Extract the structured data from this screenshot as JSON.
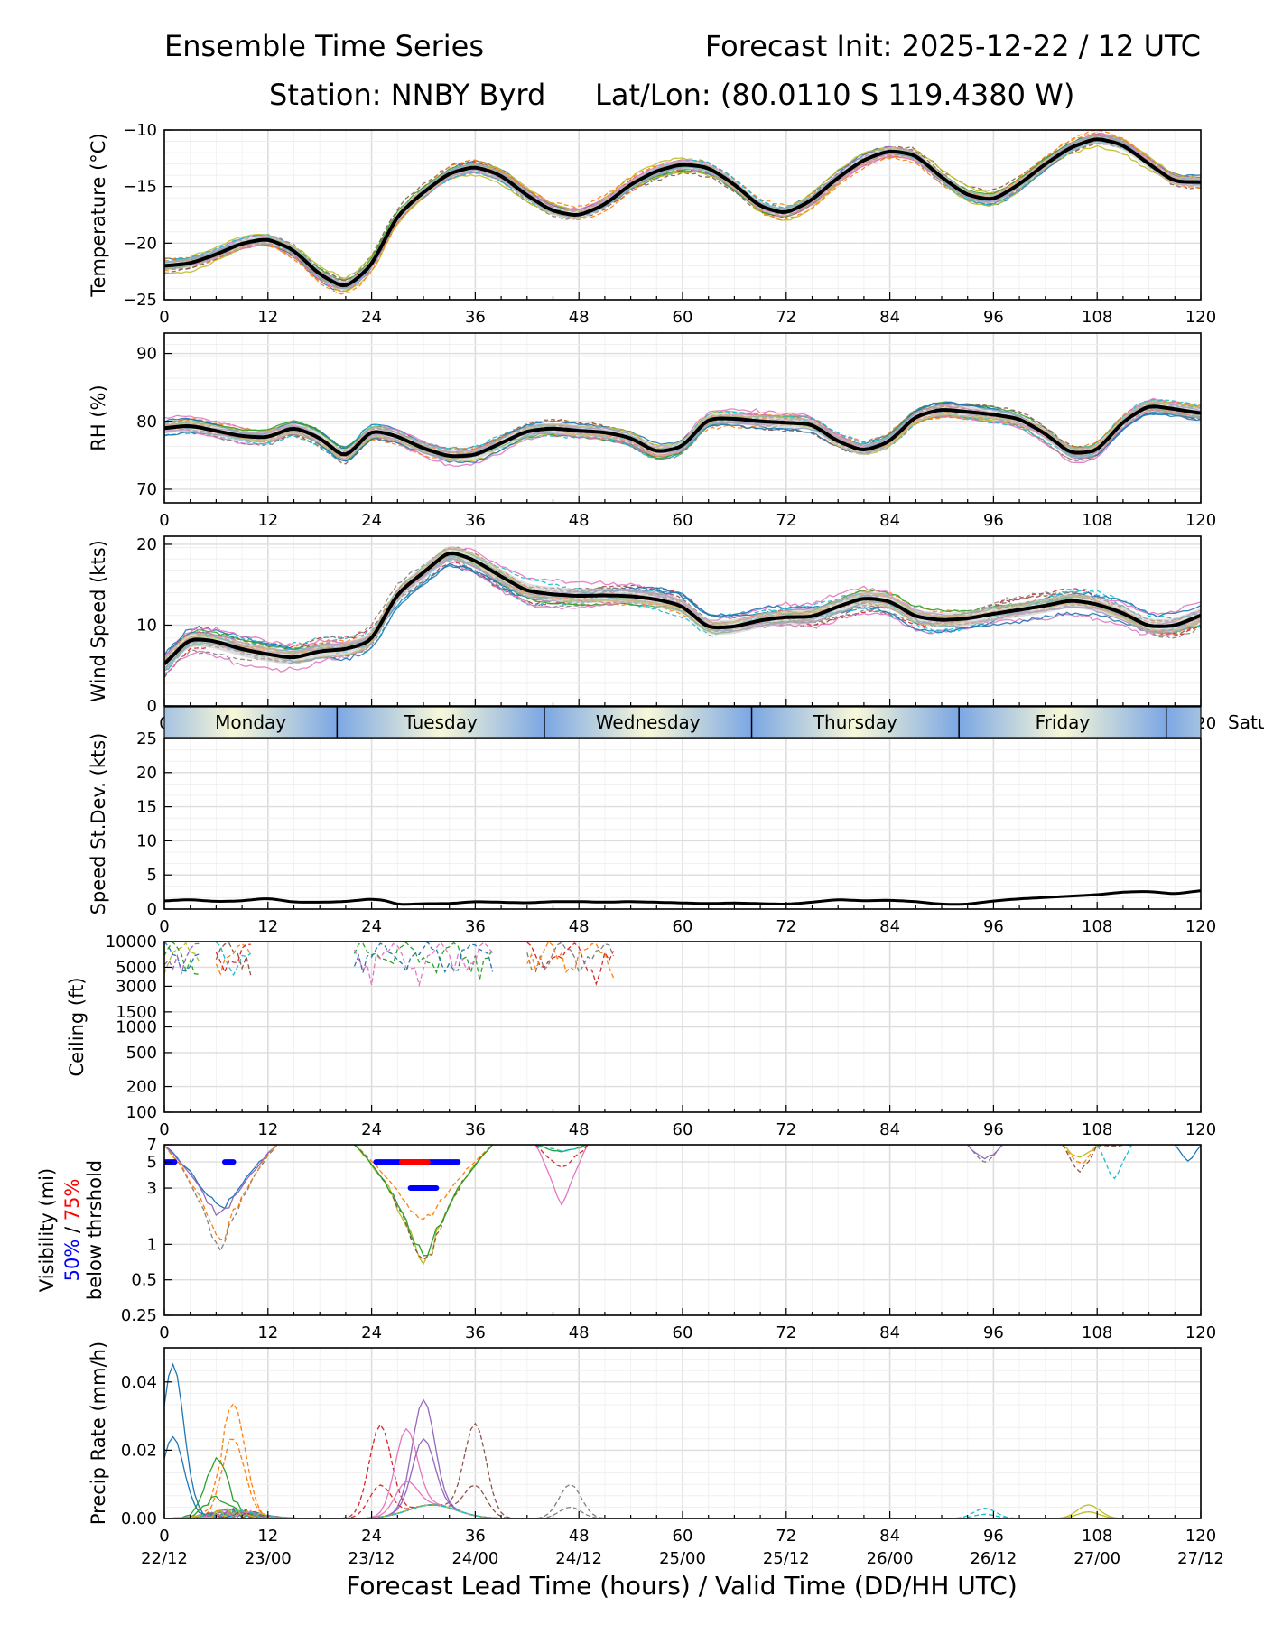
{
  "header": {
    "left_title": "Ensemble Time Series",
    "right_title": "Forecast Init: 2025-12-22 / 12 UTC",
    "station": "Station: NNBY Byrd",
    "latlon": "Lat/Lon: (80.0110 S 119.4380 W)"
  },
  "xaxis": {
    "label": "Forecast Lead Time (hours) / Valid Time (DD/HH UTC)",
    "range": [
      0,
      120
    ],
    "ticks": [
      0,
      12,
      24,
      36,
      48,
      60,
      72,
      84,
      96,
      108,
      120
    ],
    "valid_times": [
      "22/12",
      "23/00",
      "23/12",
      "24/00",
      "24/12",
      "25/00",
      "25/12",
      "26/00",
      "26/12",
      "27/00",
      "27/12"
    ]
  },
  "day_bar": {
    "days": [
      "Monday",
      "Tuesday",
      "Wednesday",
      "Thursday",
      "Friday",
      "Satu"
    ],
    "boundaries": [
      20,
      44,
      68,
      92,
      116
    ]
  },
  "chart_data": [
    {
      "type": "line",
      "title": "Temperature",
      "ylabel": "Temperature (°C)",
      "ylim": [
        -25,
        -10
      ],
      "yticks": [
        -25,
        -20,
        -15,
        -10
      ],
      "ytick_labels": [
        "−25",
        "−20",
        "−15",
        "−10"
      ],
      "mean": {
        "x": [
          0,
          3,
          6,
          9,
          12,
          15,
          18,
          21,
          24,
          27,
          30,
          33,
          36,
          39,
          42,
          45,
          48,
          51,
          54,
          57,
          60,
          63,
          66,
          69,
          72,
          75,
          78,
          81,
          84,
          87,
          90,
          93,
          96,
          99,
          102,
          105,
          108,
          111,
          114,
          117,
          120
        ],
        "y": [
          -22.0,
          -21.8,
          -21.0,
          -20.0,
          -19.6,
          -20.6,
          -22.8,
          -24.0,
          -22.0,
          -17.5,
          -15.5,
          -13.8,
          -13.2,
          -14.0,
          -15.8,
          -17.2,
          -17.6,
          -16.6,
          -14.8,
          -13.6,
          -13.0,
          -13.3,
          -14.8,
          -16.8,
          -17.4,
          -16.2,
          -14.2,
          -12.6,
          -11.8,
          -12.2,
          -14.2,
          -15.8,
          -16.2,
          -14.8,
          -13.0,
          -11.5,
          -10.7,
          -11.3,
          -13.0,
          -14.6,
          -14.6
        ]
      },
      "spread": 0.8
    },
    {
      "type": "line",
      "title": "Relative Humidity",
      "ylabel": "RH (%)",
      "ylim": [
        68,
        93
      ],
      "yticks": [
        70,
        80,
        90
      ],
      "mean": {
        "x": [
          0,
          3,
          6,
          9,
          12,
          15,
          18,
          21,
          24,
          27,
          30,
          33,
          36,
          39,
          42,
          45,
          48,
          51,
          54,
          57,
          60,
          63,
          66,
          69,
          72,
          75,
          78,
          81,
          84,
          87,
          90,
          93,
          96,
          99,
          102,
          105,
          108,
          111,
          114,
          117,
          120
        ],
        "y": [
          79.0,
          79.4,
          78.6,
          77.8,
          77.6,
          79.2,
          77.6,
          74.5,
          78.8,
          77.8,
          76.0,
          74.8,
          75.0,
          76.8,
          78.6,
          79.0,
          78.6,
          78.4,
          77.6,
          75.4,
          76.2,
          80.5,
          80.4,
          80.0,
          79.8,
          79.6,
          77.0,
          75.6,
          77.0,
          80.8,
          81.8,
          81.4,
          81.0,
          80.4,
          78.2,
          75.2,
          75.6,
          80.0,
          82.4,
          81.8,
          81.2
        ]
      },
      "spread": 1.6
    },
    {
      "type": "line",
      "title": "Wind Speed",
      "ylabel": "Wind Speed (kts)",
      "ylim": [
        0,
        21
      ],
      "yticks": [
        0,
        10,
        20
      ],
      "mean": {
        "x": [
          0,
          3,
          6,
          9,
          12,
          15,
          18,
          21,
          24,
          27,
          30,
          33,
          36,
          39,
          42,
          45,
          48,
          51,
          54,
          57,
          60,
          63,
          66,
          69,
          72,
          75,
          78,
          81,
          84,
          87,
          90,
          93,
          96,
          99,
          102,
          105,
          108,
          111,
          114,
          117,
          120
        ],
        "y": [
          5.2,
          8.4,
          8.0,
          7.0,
          6.4,
          5.9,
          6.8,
          7.0,
          8.0,
          14.0,
          16.5,
          19.2,
          18.0,
          16.0,
          14.2,
          13.8,
          13.6,
          13.7,
          13.6,
          13.2,
          12.4,
          9.6,
          9.8,
          10.6,
          11.0,
          11.0,
          12.3,
          13.4,
          13.0,
          11.0,
          10.6,
          10.8,
          11.4,
          11.9,
          12.4,
          13.1,
          12.6,
          11.5,
          9.8,
          9.9,
          11.2
        ]
      },
      "spread": 1.8
    },
    {
      "type": "line",
      "title": "Speed Standard Deviation",
      "ylabel": "Speed St.Dev. (kts)",
      "ylim": [
        0,
        25
      ],
      "yticks": [
        0,
        5,
        10,
        15,
        20,
        25
      ],
      "mean": {
        "x": [
          0,
          3,
          6,
          9,
          12,
          15,
          18,
          21,
          24,
          26,
          27,
          30,
          33,
          36,
          39,
          42,
          45,
          48,
          51,
          54,
          57,
          60,
          63,
          66,
          69,
          72,
          75,
          78,
          81,
          84,
          87,
          90,
          93,
          96,
          99,
          102,
          105,
          108,
          111,
          114,
          117,
          120
        ],
        "y": [
          1.2,
          1.4,
          1.1,
          1.2,
          1.6,
          1.0,
          1.0,
          1.1,
          1.5,
          1.2,
          0.6,
          0.8,
          0.8,
          1.1,
          1.0,
          0.9,
          1.1,
          1.1,
          1.0,
          1.1,
          1.0,
          0.9,
          0.8,
          0.9,
          0.8,
          0.7,
          1.0,
          1.4,
          1.2,
          1.3,
          1.1,
          0.7,
          0.7,
          1.2,
          1.5,
          1.7,
          1.9,
          2.1,
          2.5,
          2.6,
          2.2,
          2.7
        ]
      }
    },
    {
      "type": "line",
      "title": "Ceiling",
      "ylabel": "Ceiling (ft)",
      "yscale": "log",
      "ylim": [
        100,
        10000
      ],
      "yticks": [
        100,
        200,
        500,
        1000,
        1500,
        3000,
        5000,
        10000
      ]
    },
    {
      "type": "line",
      "title": "Visibility",
      "ylabel": "Visibility (mi)",
      "ylabel_pct50": "50%",
      "ylabel_sep": " / ",
      "ylabel_pct75": "75%",
      "ylabel_sub": "below thrshold",
      "yscale": "log",
      "ylim": [
        0.25,
        7
      ],
      "yticks": [
        0.25,
        0.5,
        1,
        3,
        5,
        7
      ],
      "thresholds": [
        {
          "level": "50%",
          "color": "#0000ff",
          "y": 5,
          "x": [
            0,
            1.2
          ]
        },
        {
          "level": "50%",
          "color": "#0000ff",
          "y": 5,
          "x": [
            7,
            8
          ]
        },
        {
          "level": "50%",
          "color": "#0000ff",
          "y": 5,
          "x": [
            24.5,
            34
          ]
        },
        {
          "level": "75%",
          "color": "#ff0000",
          "y": 5,
          "x": [
            27.5,
            30.5
          ]
        },
        {
          "level": "50%",
          "color": "#0000ff",
          "y": 3,
          "x": [
            28.5,
            31.5
          ]
        }
      ]
    },
    {
      "type": "line",
      "title": "Precip Rate",
      "ylabel": "Precip Rate (mm/h)",
      "ylim": [
        0,
        0.05
      ],
      "yticks": [
        0,
        0.02,
        0.04
      ],
      "ytick_labels": [
        "0.00",
        "0.02",
        "0.04"
      ]
    }
  ],
  "colors": {
    "mean_line": "#000000",
    "spread_fill": "#c8c8c8",
    "members": [
      "#1f77b4",
      "#ff7f0e",
      "#2ca02c",
      "#d62728",
      "#9467bd",
      "#8c564b",
      "#e377c2",
      "#7f7f7f",
      "#bcbd22",
      "#17becf"
    ],
    "day_dark": "#7ba7e4",
    "day_light": "#f8f8d8"
  }
}
